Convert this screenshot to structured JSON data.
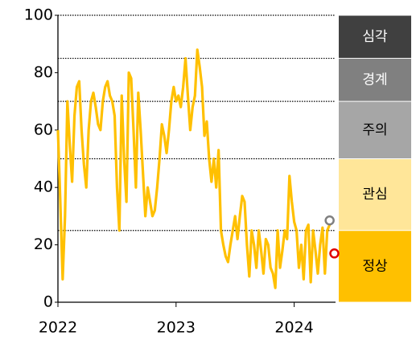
{
  "chart_data": {
    "type": "line",
    "x": [
      2022.0,
      2022.02,
      2022.04,
      2022.06,
      2022.08,
      2022.1,
      2022.12,
      2022.14,
      2022.16,
      2022.18,
      2022.2,
      2022.22,
      2022.24,
      2022.26,
      2022.28,
      2022.3,
      2022.32,
      2022.34,
      2022.36,
      2022.38,
      2022.4,
      2022.42,
      2022.44,
      2022.46,
      2022.48,
      2022.5,
      2022.52,
      2022.54,
      2022.56,
      2022.58,
      2022.6,
      2022.62,
      2022.64,
      2022.66,
      2022.68,
      2022.7,
      2022.72,
      2022.74,
      2022.76,
      2022.78,
      2022.8,
      2022.82,
      2022.84,
      2022.86,
      2022.88,
      2022.9,
      2022.92,
      2022.94,
      2022.96,
      2022.98,
      2023.0,
      2023.02,
      2023.04,
      2023.06,
      2023.08,
      2023.1,
      2023.12,
      2023.14,
      2023.16,
      2023.18,
      2023.2,
      2023.22,
      2023.24,
      2023.26,
      2023.28,
      2023.3,
      2023.32,
      2023.34,
      2023.36,
      2023.38,
      2023.4,
      2023.42,
      2023.44,
      2023.46,
      2023.48,
      2023.5,
      2023.52,
      2023.54,
      2023.56,
      2023.58,
      2023.6,
      2023.62,
      2023.64,
      2023.66,
      2023.68,
      2023.7,
      2023.72,
      2023.74,
      2023.76,
      2023.78,
      2023.8,
      2023.82,
      2023.84,
      2023.86,
      2023.88,
      2023.9,
      2023.92,
      2023.94,
      2023.96,
      2023.98,
      2024.0,
      2024.02,
      2024.04,
      2024.06,
      2024.08,
      2024.1,
      2024.12,
      2024.14,
      2024.16,
      2024.18,
      2024.2,
      2024.22,
      2024.24,
      2024.26,
      2024.28,
      2024.3
    ],
    "series": [
      {
        "color": "#ffc000",
        "values": [
          60,
          35,
          8,
          30,
          70,
          55,
          42,
          65,
          75,
          77,
          60,
          48,
          40,
          60,
          70,
          73,
          68,
          62,
          60,
          70,
          75,
          77,
          72,
          70,
          65,
          40,
          25,
          72,
          50,
          35,
          80,
          78,
          60,
          40,
          73,
          60,
          45,
          30,
          40,
          35,
          30,
          32,
          40,
          50,
          62,
          58,
          52,
          60,
          70,
          75,
          70,
          72,
          68,
          75,
          85,
          72,
          60,
          68,
          72,
          88,
          82,
          75,
          58,
          63,
          50,
          42,
          50,
          40,
          53,
          25,
          20,
          16,
          14,
          20,
          25,
          30,
          22,
          30,
          37,
          35,
          20,
          9,
          25,
          20,
          12,
          25,
          18,
          10,
          22,
          20,
          12,
          10,
          5,
          25,
          12,
          18,
          25,
          22,
          44,
          35,
          28,
          25,
          12,
          20,
          8,
          25,
          27,
          7,
          25,
          18,
          10,
          20,
          26,
          10,
          25,
          27
        ]
      }
    ],
    "markers": [
      {
        "x": 2024.3,
        "y": 28.5,
        "color": "#808080"
      },
      {
        "x": 2024.34,
        "y": 17,
        "color": "#e00000"
      }
    ],
    "xlim": [
      2022,
      2024.35
    ],
    "xticks": [
      2022,
      2023,
      2024
    ],
    "ylim": [
      0,
      100
    ],
    "yticks": [
      0,
      20,
      40,
      60,
      80,
      100
    ],
    "thresholds": [
      25,
      50,
      70,
      85,
      100
    ],
    "bands": [
      {
        "label": "심각",
        "from": 85,
        "to": 100,
        "color": "#404040",
        "text_color": "#ffffff"
      },
      {
        "label": "경계",
        "from": 70,
        "to": 85,
        "color": "#808080",
        "text_color": "#ffffff"
      },
      {
        "label": "주의",
        "from": 50,
        "to": 70,
        "color": "#a6a6a6",
        "text_color": "#000000"
      },
      {
        "label": "관심",
        "from": 25,
        "to": 50,
        "color": "#ffe699",
        "text_color": "#000000"
      },
      {
        "label": "정상",
        "from": 0,
        "to": 25,
        "color": "#ffc000",
        "text_color": "#000000"
      }
    ]
  }
}
